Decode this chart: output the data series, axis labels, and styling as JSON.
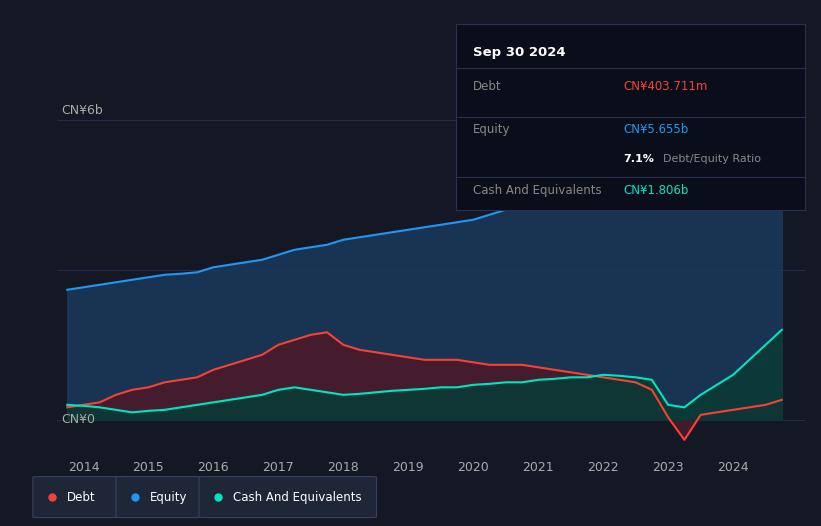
{
  "bg_color": "#141824",
  "ylabel_6b": "CN¥6b",
  "ylabel_0": "CN¥0",
  "equity_color": "#2196f3",
  "debt_color": "#f44336",
  "cash_color": "#00e5c0",
  "equity_fill": "#1a3a5c",
  "debt_fill": "#4a1a2a",
  "cash_fill": "#0a3a35",
  "tooltip_bg": "#0a0e1a",
  "tooltip_border": "#2a3050",
  "grid_color": "#2a3050",
  "years": [
    2013.75,
    2014.0,
    2014.25,
    2014.5,
    2014.75,
    2015.0,
    2015.25,
    2015.5,
    2015.75,
    2016.0,
    2016.25,
    2016.5,
    2016.75,
    2017.0,
    2017.25,
    2017.5,
    2017.75,
    2018.0,
    2018.25,
    2018.5,
    2018.75,
    2019.0,
    2019.25,
    2019.5,
    2019.75,
    2020.0,
    2020.25,
    2020.5,
    2020.75,
    2021.0,
    2021.25,
    2021.5,
    2021.75,
    2022.0,
    2022.25,
    2022.5,
    2022.75,
    2023.0,
    2023.25,
    2023.5,
    2023.75,
    2024.0,
    2024.25,
    2024.5,
    2024.75
  ],
  "equity": [
    2.6,
    2.65,
    2.7,
    2.75,
    2.8,
    2.85,
    2.9,
    2.92,
    2.95,
    3.05,
    3.1,
    3.15,
    3.2,
    3.3,
    3.4,
    3.45,
    3.5,
    3.6,
    3.65,
    3.7,
    3.75,
    3.8,
    3.85,
    3.9,
    3.95,
    4.0,
    4.1,
    4.2,
    4.3,
    4.4,
    4.5,
    4.6,
    4.7,
    4.8,
    4.85,
    4.9,
    4.95,
    5.0,
    5.1,
    5.2,
    5.3,
    5.4,
    5.5,
    5.6,
    5.7
  ],
  "debt": [
    0.25,
    0.3,
    0.35,
    0.5,
    0.6,
    0.65,
    0.75,
    0.8,
    0.85,
    1.0,
    1.1,
    1.2,
    1.3,
    1.5,
    1.6,
    1.7,
    1.75,
    1.5,
    1.4,
    1.35,
    1.3,
    1.25,
    1.2,
    1.2,
    1.2,
    1.15,
    1.1,
    1.1,
    1.1,
    1.05,
    1.0,
    0.95,
    0.9,
    0.85,
    0.8,
    0.75,
    0.6,
    0.05,
    -0.4,
    0.1,
    0.15,
    0.2,
    0.25,
    0.3,
    0.4
  ],
  "cash": [
    0.3,
    0.28,
    0.25,
    0.2,
    0.15,
    0.18,
    0.2,
    0.25,
    0.3,
    0.35,
    0.4,
    0.45,
    0.5,
    0.6,
    0.65,
    0.6,
    0.55,
    0.5,
    0.52,
    0.55,
    0.58,
    0.6,
    0.62,
    0.65,
    0.65,
    0.7,
    0.72,
    0.75,
    0.75,
    0.8,
    0.82,
    0.85,
    0.85,
    0.9,
    0.88,
    0.85,
    0.8,
    0.3,
    0.25,
    0.5,
    0.7,
    0.9,
    1.2,
    1.5,
    1.8
  ],
  "tooltip_title": "Sep 30 2024",
  "tooltip_rows": [
    {
      "label": "Debt",
      "value": "CN¥403.711m",
      "value_color": "#f44336"
    },
    {
      "label": "Equity",
      "value": "CN¥5.655b",
      "value_color": "#2196f3"
    },
    {
      "label": "",
      "value": "7.1% Debt/Equity Ratio",
      "value_color": null
    },
    {
      "label": "Cash And Equivalents",
      "value": "CN¥1.806b",
      "value_color": "#00e5c0"
    }
  ],
  "legend_items": [
    {
      "label": "Debt",
      "color": "#f44336"
    },
    {
      "label": "Equity",
      "color": "#2196f3"
    },
    {
      "label": "Cash And Equivalents",
      "color": "#00e5c0"
    }
  ]
}
